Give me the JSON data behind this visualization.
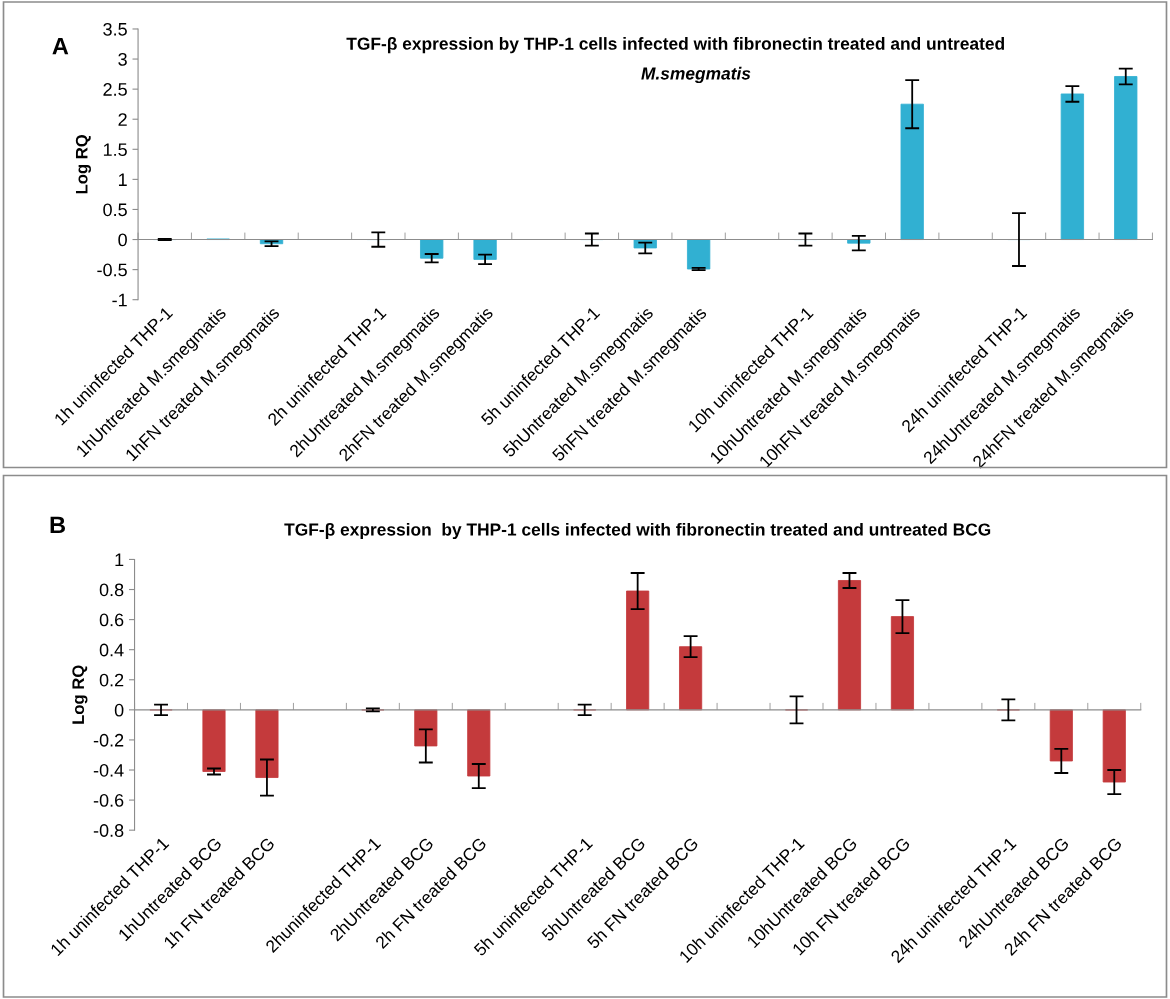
{
  "chart_data": [
    {
      "type": "bar",
      "title": "TGF-β expression by THP-1 cells infected with fibronectin treated and untreated",
      "subtitle": "M.smegmatis",
      "ylabel": "Log RQ",
      "annotations": [
        "A"
      ],
      "categories": [
        "1h uninfected THP-1",
        "1hUntreated M.smegmatis",
        "1hFN treated M.smegmatis",
        null,
        "2h uninfected THP-1",
        "2hUntreated M.smegmatis",
        "2hFN treated M.smegmatis",
        null,
        "5h uninfected THP-1",
        "5hUntreated M.smegmatis",
        "5hFN treated M.smegmatis",
        null,
        "10h uninfected THP-1",
        "10hUntreated M.smegmatis",
        "10hFN treated M.smegmatis",
        null,
        "24h uninfected THP-1",
        "24hUntreated M.smegmatis",
        "24hFN treated M.smegmatis"
      ],
      "values": [
        0,
        0.01,
        -0.07,
        null,
        0,
        -0.31,
        -0.33,
        null,
        0,
        -0.14,
        -0.49,
        null,
        0,
        -0.06,
        2.25,
        null,
        0,
        2.42,
        2.71
      ],
      "errors": [
        0.01,
        null,
        0.04,
        null,
        0.12,
        0.07,
        0.08,
        null,
        0.1,
        0.09,
        0.02,
        null,
        0.1,
        0.12,
        0.4,
        null,
        0.44,
        0.13,
        0.13
      ],
      "color": "#31b0d2",
      "ylim": [
        -1,
        3.5
      ],
      "yticks": [
        -1,
        -0.5,
        0,
        0.5,
        1,
        1.5,
        2,
        2.5,
        3,
        3.5
      ]
    },
    {
      "type": "bar",
      "title": "TGF-β expression  by THP-1 cells infected with fibronectin treated and untreated BCG",
      "ylabel": "Log RQ",
      "annotations": [
        "B"
      ],
      "categories": [
        "1h uninfected THP-1",
        "1hUntreated BCG",
        "1h FN treated BCG",
        null,
        "2huninfected THP-1",
        "2hUntreated BCG",
        "2h FN treated BCG",
        null,
        "5h uninfected THP-1",
        "5hUntreated BCG",
        "5h FN treated BCG",
        null,
        "10h uninfected THP-1",
        "10hUntreated BCG",
        "10h FN treated BCG",
        null,
        "24h uninfected THP-1",
        "24hUntreated BCG",
        "24h FN treated BCG"
      ],
      "values": [
        0,
        -0.41,
        -0.45,
        null,
        0,
        -0.24,
        -0.44,
        null,
        0,
        0.79,
        0.42,
        null,
        0,
        0.86,
        0.62,
        null,
        0,
        -0.34,
        -0.48
      ],
      "errors": [
        0.035,
        0.02,
        0.12,
        null,
        0.01,
        0.11,
        0.08,
        null,
        0.035,
        0.12,
        0.07,
        null,
        0.09,
        0.05,
        0.11,
        null,
        0.07,
        0.08,
        0.08
      ],
      "color": "#c43a3c",
      "ylim": [
        -0.8,
        1
      ],
      "yticks": [
        -0.8,
        -0.6,
        -0.4,
        -0.2,
        0,
        0.2,
        0.4,
        0.6,
        0.8,
        1
      ]
    }
  ]
}
